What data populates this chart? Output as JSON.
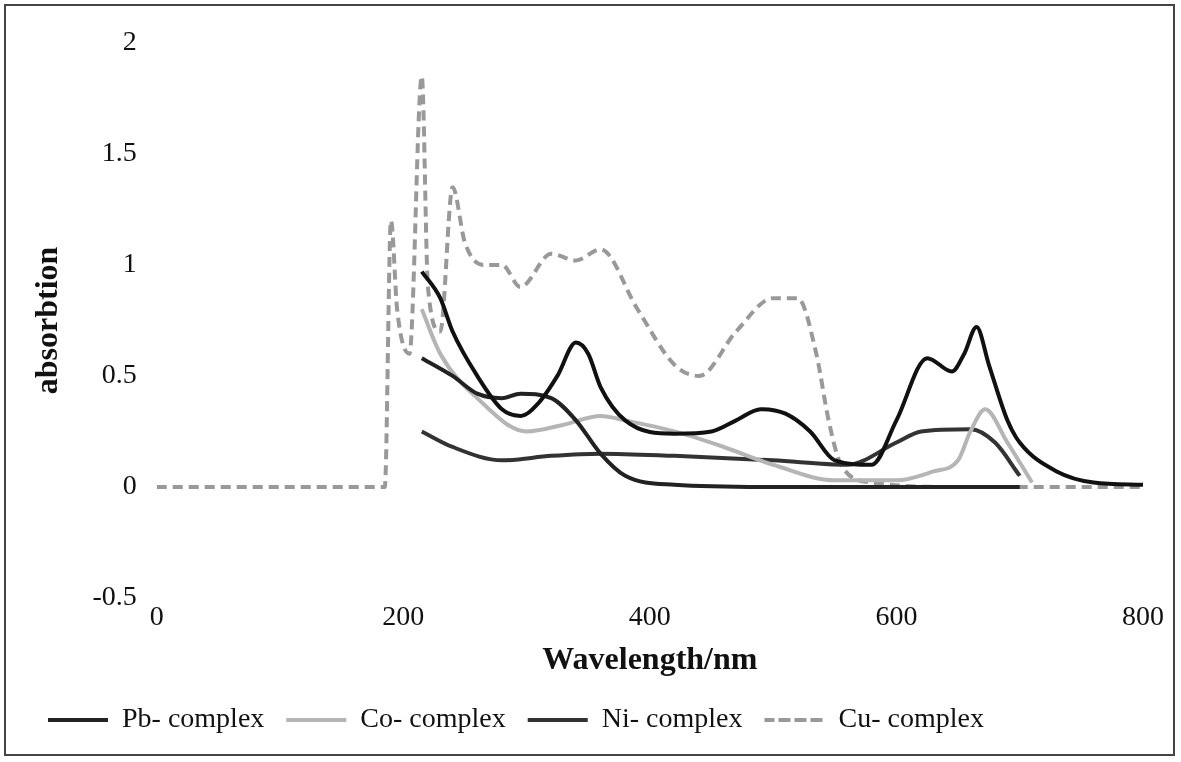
{
  "chart_data": {
    "type": "line",
    "xlabel": "Wavelength/nm",
    "ylabel": "absorbtion",
    "xlim": [
      0,
      800
    ],
    "xticks": [
      0,
      200,
      400,
      600,
      800
    ],
    "ylim": [
      -0.5,
      2
    ],
    "yticks": [
      -0.5,
      0,
      0.5,
      1,
      1.5,
      2
    ],
    "grid": false,
    "legend": "bottom",
    "marker": "none",
    "series": [
      {
        "color": "#111111",
        "x": [
          215,
          230,
          240,
          260,
          280,
          295,
          310,
          325,
          340,
          350,
          360,
          380,
          420,
          450,
          470,
          490,
          510,
          530,
          550,
          580,
          600,
          625,
          645,
          655,
          665,
          675,
          690,
          700,
          730,
          760,
          800
        ],
        "values": [
          0.97,
          0.85,
          0.7,
          0.5,
          0.35,
          0.32,
          0.38,
          0.5,
          0.65,
          0.6,
          0.45,
          0.3,
          0.24,
          0.25,
          0.3,
          0.35,
          0.33,
          0.25,
          0.12,
          0.1,
          0.3,
          0.58,
          0.52,
          0.6,
          0.72,
          0.55,
          0.3,
          0.2,
          0.07,
          0.02,
          0.01
        ]
      },
      {
        "name": "Pb- complex",
        "color": "#222222",
        "x": [
          215,
          240,
          260,
          280,
          295,
          320,
          340,
          360,
          380,
          420,
          500,
          700
        ],
        "values": [
          0.58,
          0.5,
          0.42,
          0.4,
          0.42,
          0.4,
          0.3,
          0.15,
          0.05,
          0.01,
          0,
          0
        ]
      },
      {
        "name": "Co- complex",
        "color": "#b5b5b5",
        "x": [
          215,
          230,
          260,
          300,
          330,
          360,
          380,
          420,
          460,
          500,
          550,
          600,
          630,
          650,
          660,
          672,
          690,
          710
        ],
        "values": [
          0.8,
          0.6,
          0.4,
          0.25,
          0.28,
          0.32,
          0.3,
          0.25,
          0.18,
          0.1,
          0.03,
          0.03,
          0.07,
          0.12,
          0.25,
          0.35,
          0.2,
          0.02
        ]
      },
      {
        "name": "Ni- complex",
        "color": "#333333",
        "x": [
          215,
          240,
          280,
          320,
          360,
          420,
          500,
          560,
          600,
          620,
          660,
          680,
          700
        ],
        "values": [
          0.25,
          0.18,
          0.12,
          0.14,
          0.15,
          0.14,
          0.12,
          0.1,
          0.2,
          0.25,
          0.26,
          0.2,
          0.05
        ]
      },
      {
        "name": "Cu- complex",
        "color": "#999999",
        "line_style": "dashed",
        "x": [
          0,
          185,
          190,
          195,
          205,
          215,
          220,
          230,
          240,
          250,
          265,
          280,
          295,
          320,
          340,
          360,
          390,
          420,
          440,
          470,
          500,
          520,
          535,
          545,
          555,
          580,
          650,
          800
        ],
        "values": [
          0,
          0,
          1.2,
          0.8,
          0.6,
          1.85,
          0.9,
          0.7,
          1.35,
          1.1,
          1.0,
          1.0,
          0.9,
          1.05,
          1.02,
          1.07,
          0.8,
          0.55,
          0.5,
          0.7,
          0.85,
          0.85,
          0.6,
          0.3,
          0.1,
          0.02,
          0,
          0
        ]
      }
    ]
  }
}
